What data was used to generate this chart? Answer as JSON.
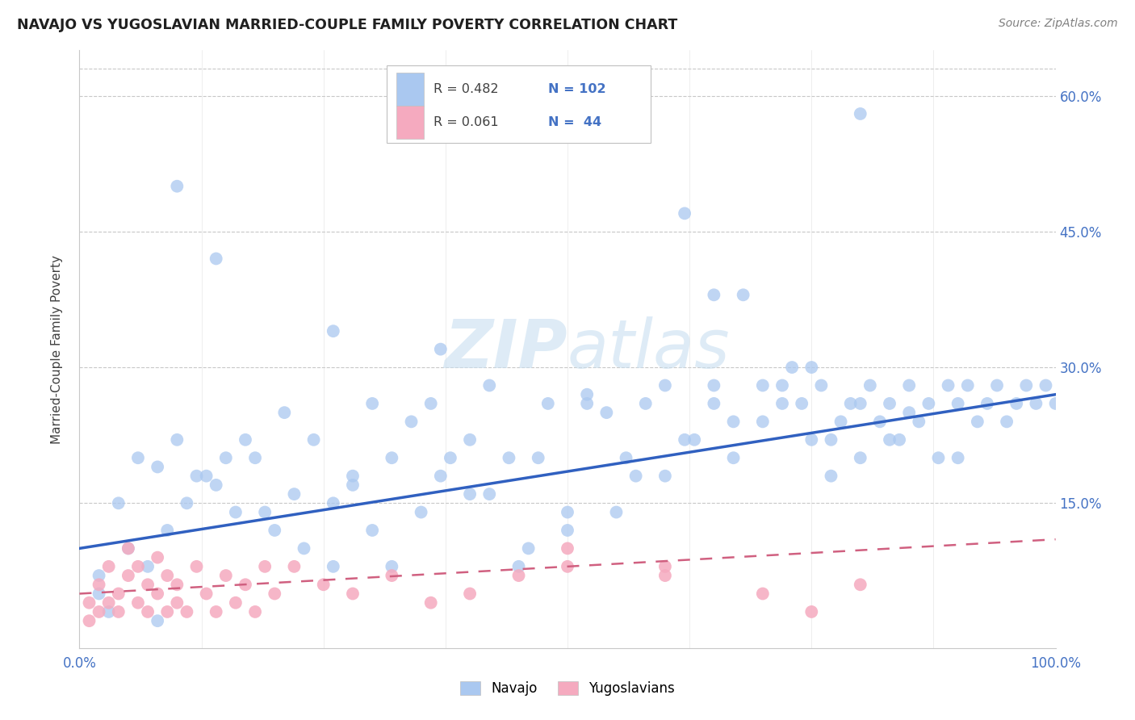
{
  "title": "NAVAJO VS YUGOSLAVIAN MARRIED-COUPLE FAMILY POVERTY CORRELATION CHART",
  "source_text": "Source: ZipAtlas.com",
  "ylabel": "Married-Couple Family Poverty",
  "xlim": [
    0,
    100
  ],
  "ylim": [
    -1,
    65
  ],
  "ytick_vals": [
    15,
    30,
    45,
    60
  ],
  "ytick_labels": [
    "15.0%",
    "30.0%",
    "45.0%",
    "60.0%"
  ],
  "navajo_R": 0.482,
  "navajo_N": 102,
  "yugo_R": 0.061,
  "yugo_N": 44,
  "navajo_color": "#aac8f0",
  "yugo_color": "#f5aabf",
  "navajo_line_color": "#3060c0",
  "yugo_line_color": "#d06080",
  "watermark_color": "#c8dff0",
  "nav_x": [
    2,
    3,
    5,
    7,
    8,
    9,
    11,
    13,
    15,
    17,
    19,
    21,
    23,
    26,
    28,
    30,
    32,
    35,
    37,
    40,
    42,
    45,
    47,
    50,
    52,
    55,
    57,
    60,
    62,
    65,
    67,
    70,
    72,
    73,
    74,
    75,
    76,
    77,
    78,
    79,
    80,
    81,
    82,
    83,
    84,
    85,
    86,
    87,
    88,
    89,
    90,
    91,
    92,
    93,
    94,
    95,
    96,
    97,
    98,
    99,
    100,
    2,
    4,
    6,
    8,
    10,
    12,
    14,
    16,
    18,
    20,
    22,
    24,
    26,
    28,
    30,
    32,
    34,
    36,
    38,
    40,
    42,
    44,
    46,
    48,
    50,
    52,
    54,
    56,
    58,
    60,
    63,
    65,
    67,
    70,
    72,
    75,
    77,
    80,
    83,
    85,
    90
  ],
  "nav_y": [
    5,
    3,
    10,
    8,
    2,
    12,
    15,
    18,
    20,
    22,
    14,
    25,
    10,
    8,
    17,
    12,
    20,
    14,
    18,
    22,
    16,
    8,
    20,
    12,
    26,
    14,
    18,
    28,
    22,
    26,
    20,
    24,
    28,
    30,
    26,
    22,
    28,
    18,
    24,
    26,
    20,
    28,
    24,
    26,
    22,
    28,
    24,
    26,
    20,
    28,
    26,
    28,
    24,
    26,
    28,
    24,
    26,
    28,
    26,
    28,
    26,
    7,
    15,
    20,
    19,
    22,
    18,
    17,
    14,
    20,
    12,
    16,
    22,
    15,
    18,
    26,
    8,
    24,
    26,
    20,
    16,
    28,
    20,
    10,
    26,
    14,
    27,
    25,
    20,
    26,
    18,
    22,
    28,
    24,
    28,
    26,
    30,
    22,
    26,
    22,
    25,
    20
  ],
  "nav_outlier_x": [
    10,
    14,
    26,
    37,
    62,
    65,
    68,
    80
  ],
  "nav_outlier_y": [
    50,
    42,
    34,
    32,
    47,
    38,
    38,
    58
  ],
  "yugo_x": [
    1,
    1,
    2,
    2,
    3,
    3,
    4,
    4,
    5,
    5,
    6,
    6,
    7,
    7,
    8,
    8,
    9,
    9,
    10,
    10,
    11,
    12,
    13,
    14,
    15,
    16,
    17,
    18,
    19,
    20,
    22,
    25,
    28,
    32,
    36,
    40,
    45,
    50,
    60,
    70,
    75,
    50,
    60,
    80
  ],
  "yugo_y": [
    2,
    4,
    3,
    6,
    4,
    8,
    5,
    3,
    7,
    10,
    4,
    8,
    3,
    6,
    9,
    5,
    3,
    7,
    4,
    6,
    3,
    8,
    5,
    3,
    7,
    4,
    6,
    3,
    8,
    5,
    8,
    6,
    5,
    7,
    4,
    5,
    7,
    8,
    7,
    5,
    3,
    10,
    8,
    6
  ],
  "nav_line_x0": 0,
  "nav_line_y0": 10,
  "nav_line_x1": 100,
  "nav_line_y1": 27,
  "yugo_line_x0": 0,
  "yugo_line_y0": 5,
  "yugo_line_x1": 100,
  "yugo_line_y1": 11
}
